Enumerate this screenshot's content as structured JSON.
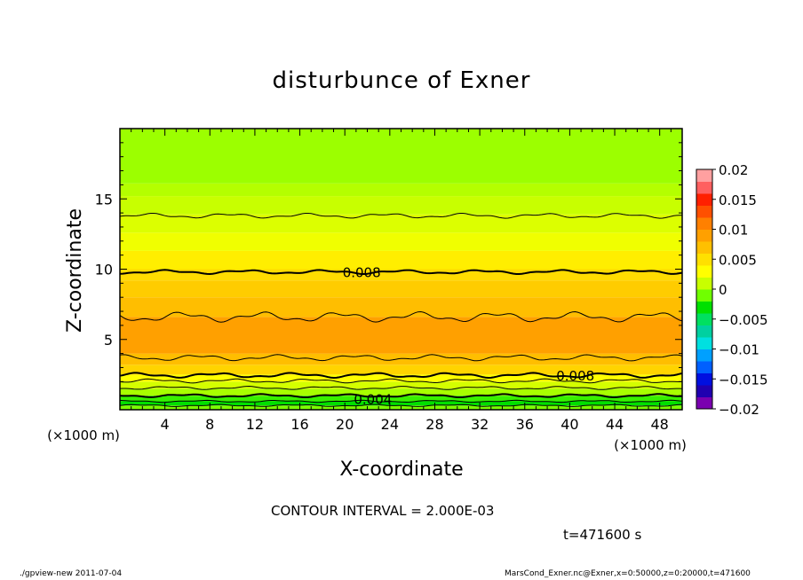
{
  "chart_data": {
    "type": "heatmap",
    "title": "disturbunce of Exner",
    "xlabel": "X-coordinate",
    "ylabel": "Z-coordinate",
    "x_unit_label": "(×1000 m)",
    "z_unit_label": "(×1000 m)",
    "xlim": [
      0,
      50
    ],
    "ylim": [
      0,
      20
    ],
    "x_ticks": [
      4,
      8,
      12,
      16,
      20,
      24,
      28,
      32,
      36,
      40,
      44,
      48
    ],
    "y_ticks": [
      5,
      10,
      15
    ],
    "contour_interval_text": "CONTOUR INTERVAL = 2.000E-03",
    "time_text": "t=471600 s",
    "footer_left": "./gpview-new   2011-07-04",
    "footer_right": "MarsCond_Exner.nc@Exner,x=0:50000,z=0:20000,t=471600",
    "colorbar": {
      "ticks": [
        "0.02",
        "0.015",
        "0.01",
        "0.005",
        "0",
        "−0.005",
        "−0.01",
        "−0.015",
        "−0.02"
      ],
      "range": [
        -0.02,
        0.02
      ],
      "colors": [
        "#7a00b0",
        "#2000b0",
        "#0010e0",
        "#0060ff",
        "#00a0ff",
        "#00e0e0",
        "#00d0a0",
        "#00e060",
        "#00e000",
        "#70ff00",
        "#c8ff00",
        "#ffff00",
        "#ffe000",
        "#ffc000",
        "#ffa000",
        "#ff8000",
        "#ff5000",
        "#ff2000",
        "#ff6060",
        "#ffa0a0"
      ]
    },
    "bands": [
      {
        "z0": 0.0,
        "z1": 0.3,
        "color": "#7cff00"
      },
      {
        "z0": 0.3,
        "z1": 0.6,
        "color": "#00e000"
      },
      {
        "z0": 0.6,
        "z1": 1.0,
        "color": "#38f000"
      },
      {
        "z0": 1.0,
        "z1": 1.5,
        "color": "#a8ff00"
      },
      {
        "z0": 1.5,
        "z1": 2.0,
        "color": "#d4ff00"
      },
      {
        "z0": 2.0,
        "z1": 2.5,
        "color": "#ffff00"
      },
      {
        "z0": 2.5,
        "z1": 3.2,
        "color": "#ffd400"
      },
      {
        "z0": 3.2,
        "z1": 4.0,
        "color": "#ffbe00"
      },
      {
        "z0": 4.0,
        "z1": 6.6,
        "color": "#ffa000"
      },
      {
        "z0": 6.6,
        "z1": 8.0,
        "color": "#ffbe00"
      },
      {
        "z0": 8.0,
        "z1": 9.2,
        "color": "#ffcc00"
      },
      {
        "z0": 9.2,
        "z1": 10.0,
        "color": "#ffdc00"
      },
      {
        "z0": 10.0,
        "z1": 11.3,
        "color": "#ffee00"
      },
      {
        "z0": 11.3,
        "z1": 12.6,
        "color": "#f0ff00"
      },
      {
        "z0": 12.6,
        "z1": 13.9,
        "color": "#dcff00"
      },
      {
        "z0": 13.9,
        "z1": 15.2,
        "color": "#c8ff00"
      },
      {
        "z0": 15.2,
        "z1": 16.1,
        "color": "#b4ff00"
      },
      {
        "z0": 16.1,
        "z1": 20.0,
        "color": "#9cff00"
      }
    ],
    "contours": [
      {
        "z": 0.3,
        "bold": false,
        "amp": 0.05
      },
      {
        "z": 0.6,
        "bold": false,
        "amp": 0.05
      },
      {
        "z": 1.0,
        "bold": true,
        "amp": 0.08
      },
      {
        "z": 1.55,
        "bold": false,
        "amp": 0.08
      },
      {
        "z": 2.05,
        "bold": false,
        "amp": 0.1
      },
      {
        "z": 2.45,
        "bold": true,
        "amp": 0.12
      },
      {
        "z": 3.7,
        "bold": false,
        "amp": 0.15
      },
      {
        "z": 6.6,
        "bold": false,
        "amp": 0.25
      },
      {
        "z": 9.8,
        "bold": true,
        "amp": 0.1
      },
      {
        "z": 13.8,
        "bold": false,
        "amp": 0.12
      }
    ],
    "contour_labels": [
      {
        "text": "0.008",
        "x": 21.5,
        "z": 9.8
      },
      {
        "text": "0.008",
        "x": 40.5,
        "z": 2.45
      },
      {
        "text": "0.004",
        "x": 22.5,
        "z": 0.8
      }
    ]
  }
}
